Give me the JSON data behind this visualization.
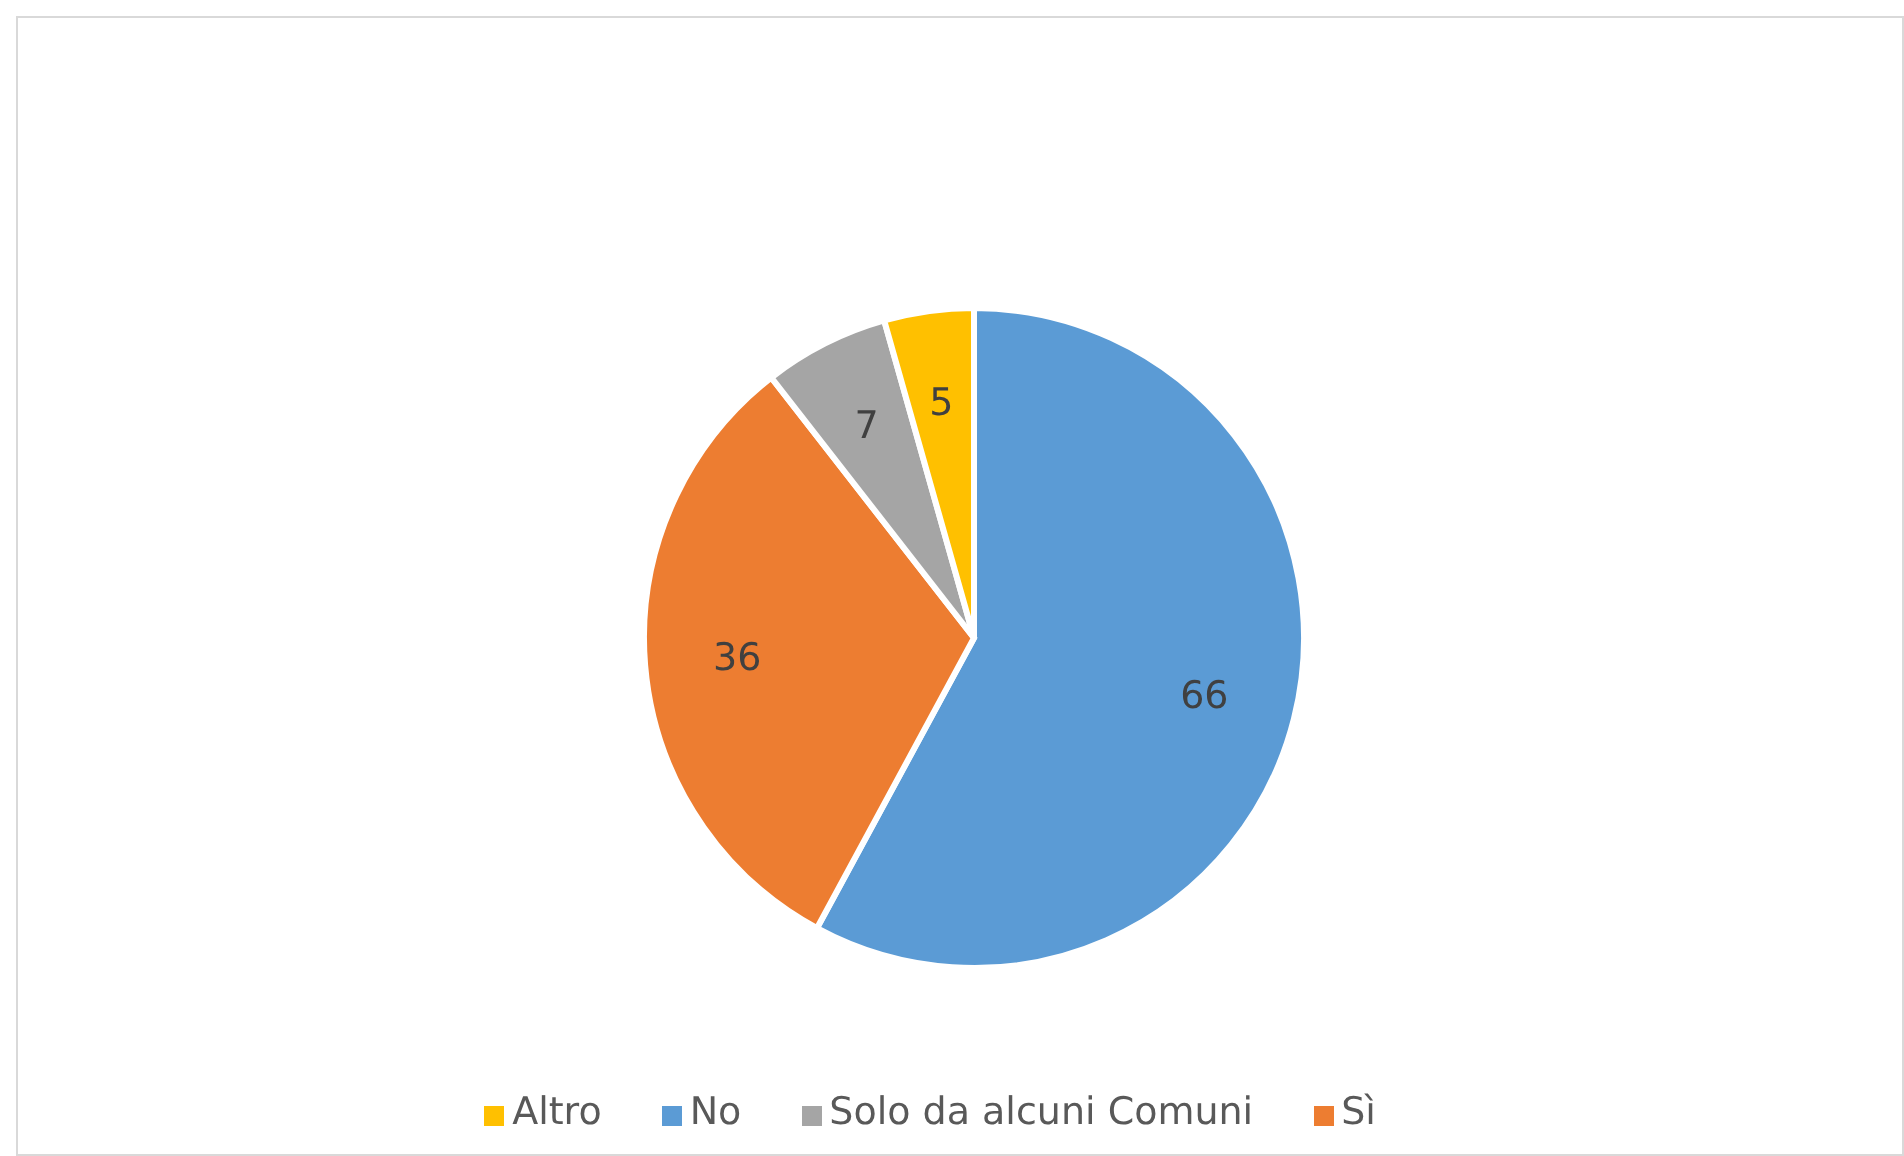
{
  "chart_data": {
    "type": "pie",
    "categories": [
      "No",
      "Sì",
      "Solo da alcuni Comuni",
      "Altro"
    ],
    "values": [
      66,
      36,
      7,
      5
    ],
    "colors": [
      "#5b9bd5",
      "#ed7d31",
      "#a5a5a5",
      "#ffc000"
    ],
    "data_labels": true,
    "legend": "bottom"
  }
}
